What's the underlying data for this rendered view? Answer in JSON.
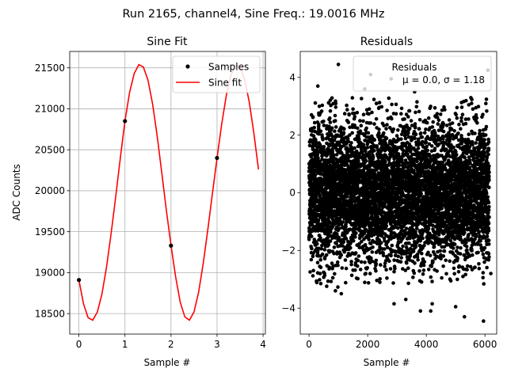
{
  "figure": {
    "suptitle": "Run 2165, channel4, Sine Freq.: 19.0016 MHz"
  },
  "chart_data": [
    {
      "type": "line",
      "title": "Sine Fit",
      "xlabel": "Sample #",
      "ylabel": "ADC Counts",
      "xlim": [
        -0.2,
        4.05
      ],
      "ylim": [
        18250,
        21700
      ],
      "xticks": [
        0,
        1,
        2,
        3,
        4
      ],
      "yticks": [
        18500,
        19000,
        19500,
        20000,
        20500,
        21000,
        21500
      ],
      "grid": true,
      "legend_position": "top-right",
      "series": [
        {
          "name": "Samples",
          "marker": "circle",
          "color": "#000000",
          "x": [
            0,
            1,
            2,
            3
          ],
          "y": [
            18910,
            20850,
            19330,
            20400
          ]
        },
        {
          "name": "Sine fit",
          "color": "#ff0000",
          "x": [
            0.0,
            0.1,
            0.2,
            0.3,
            0.4,
            0.5,
            0.6,
            0.7,
            0.8,
            0.9,
            1.0,
            1.1,
            1.2,
            1.3,
            1.4,
            1.5,
            1.6,
            1.7,
            1.8,
            1.9,
            2.0,
            2.1,
            2.2,
            2.3,
            2.4,
            2.5,
            2.6,
            2.7,
            2.8,
            2.9,
            3.0,
            3.1,
            3.2,
            3.3,
            3.4,
            3.5,
            3.6,
            3.7,
            3.8,
            3.9
          ],
          "y": [
            18910,
            18620,
            18450,
            18420,
            18520,
            18740,
            19070,
            19480,
            19930,
            20400,
            20850,
            21200,
            21430,
            21540,
            21510,
            21350,
            21060,
            20670,
            20220,
            19760,
            19330,
            18950,
            18640,
            18460,
            18420,
            18520,
            18760,
            19110,
            19530,
            19970,
            20400,
            20810,
            21160,
            21410,
            21530,
            21510,
            21360,
            21080,
            20700,
            20260
          ]
        }
      ]
    },
    {
      "type": "scatter",
      "title": "Residuals",
      "xlabel": "Sample #",
      "ylabel": "",
      "xlim": [
        -300,
        6400
      ],
      "ylim": [
        -4.9,
        4.9
      ],
      "xticks": [
        0,
        2000,
        4000,
        6000
      ],
      "yticks": [
        -4,
        -2,
        0,
        2,
        4
      ],
      "grid": false,
      "legend_position": "top-right",
      "n_points": 6144,
      "mean": 0.0,
      "std": 1.18,
      "series": [
        {
          "name": "Residuals",
          "stats_label": "μ = 0.0, σ = 1.18",
          "marker": "circle",
          "color": "#000000",
          "outliers": [
            {
              "x": 1000,
              "y": 4.45
            },
            {
              "x": 2100,
              "y": 4.1
            },
            {
              "x": 2800,
              "y": 3.95
            },
            {
              "x": 6100,
              "y": 4.25
            },
            {
              "x": 1900,
              "y": 3.6
            },
            {
              "x": 3600,
              "y": 3.5
            },
            {
              "x": 300,
              "y": 3.7
            },
            {
              "x": 3800,
              "y": -4.1
            },
            {
              "x": 4200,
              "y": -3.85
            },
            {
              "x": 5300,
              "y": -4.3
            },
            {
              "x": 5950,
              "y": -4.45
            },
            {
              "x": 2900,
              "y": -3.85
            },
            {
              "x": 3300,
              "y": -3.7
            },
            {
              "x": 1100,
              "y": -3.5
            },
            {
              "x": 5000,
              "y": -3.95
            },
            {
              "x": 4150,
              "y": -4.1
            },
            {
              "x": 900,
              "y": -3.4
            },
            {
              "x": 150,
              "y": -2.7
            },
            {
              "x": 6200,
              "y": -2.8
            },
            {
              "x": 400,
              "y": -3.15
            }
          ]
        }
      ]
    }
  ]
}
